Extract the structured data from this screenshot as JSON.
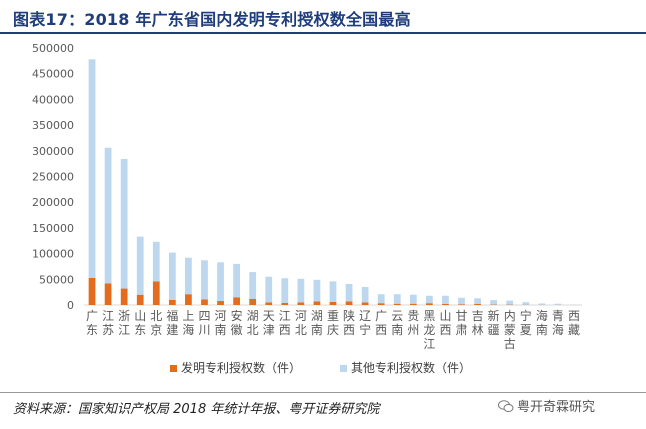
{
  "title": "图表17：2018 年广东省国内发明专利授权数全国最高",
  "source": "资料来源：国家知识产权局 2018 年统计年报、粤开证券研究院",
  "watermark": {
    "text": "粤开奇霖研究",
    "icon": "wechat-icon"
  },
  "colors": {
    "invention": "#e46c1f",
    "other": "#bdd7ee",
    "title": "#1f3d7a",
    "axis": "#d9d9d9",
    "text": "#595959"
  },
  "chart_data": {
    "type": "bar",
    "stacked": true,
    "ylim": [
      0,
      500000
    ],
    "yticks": [
      "0",
      "50000",
      "100000",
      "150000",
      "200000",
      "250000",
      "300000",
      "350000",
      "400000",
      "450000",
      "500000"
    ],
    "categories": [
      "广东",
      "江苏",
      "浙江",
      "山东",
      "北京",
      "福建",
      "上海",
      "四川",
      "河南",
      "安徽",
      "湖北",
      "天津",
      "江西",
      "河北",
      "湖南",
      "重庆",
      "陕西",
      "辽宁",
      "广西",
      "云南",
      "贵州",
      "黑龙江",
      "山西",
      "甘肃",
      "吉林",
      "新疆",
      "内蒙古",
      "宁夏",
      "海南",
      "青海",
      "西藏"
    ],
    "series": [
      {
        "name": "发明专利授权数（件）",
        "values": [
          53000,
          42000,
          32000,
          20000,
          46000,
          10000,
          21000,
          11000,
          8000,
          15000,
          12000,
          5000,
          4000,
          5000,
          7000,
          6000,
          7000,
          5000,
          3500,
          2500,
          2500,
          3500,
          2000,
          1500,
          2000,
          800,
          800,
          500,
          400,
          300,
          100
        ]
      },
      {
        "name": "其他专利授权数（件）",
        "values": [
          425000,
          264000,
          252000,
          113000,
          77000,
          92000,
          71000,
          76000,
          75000,
          65000,
          52000,
          50000,
          48000,
          46000,
          42000,
          40000,
          34000,
          30000,
          17500,
          18500,
          17500,
          14500,
          16000,
          12500,
          11000,
          8700,
          7700,
          5000,
          2500,
          2200,
          300
        ]
      }
    ],
    "legend_position": "bottom",
    "grid": false
  }
}
